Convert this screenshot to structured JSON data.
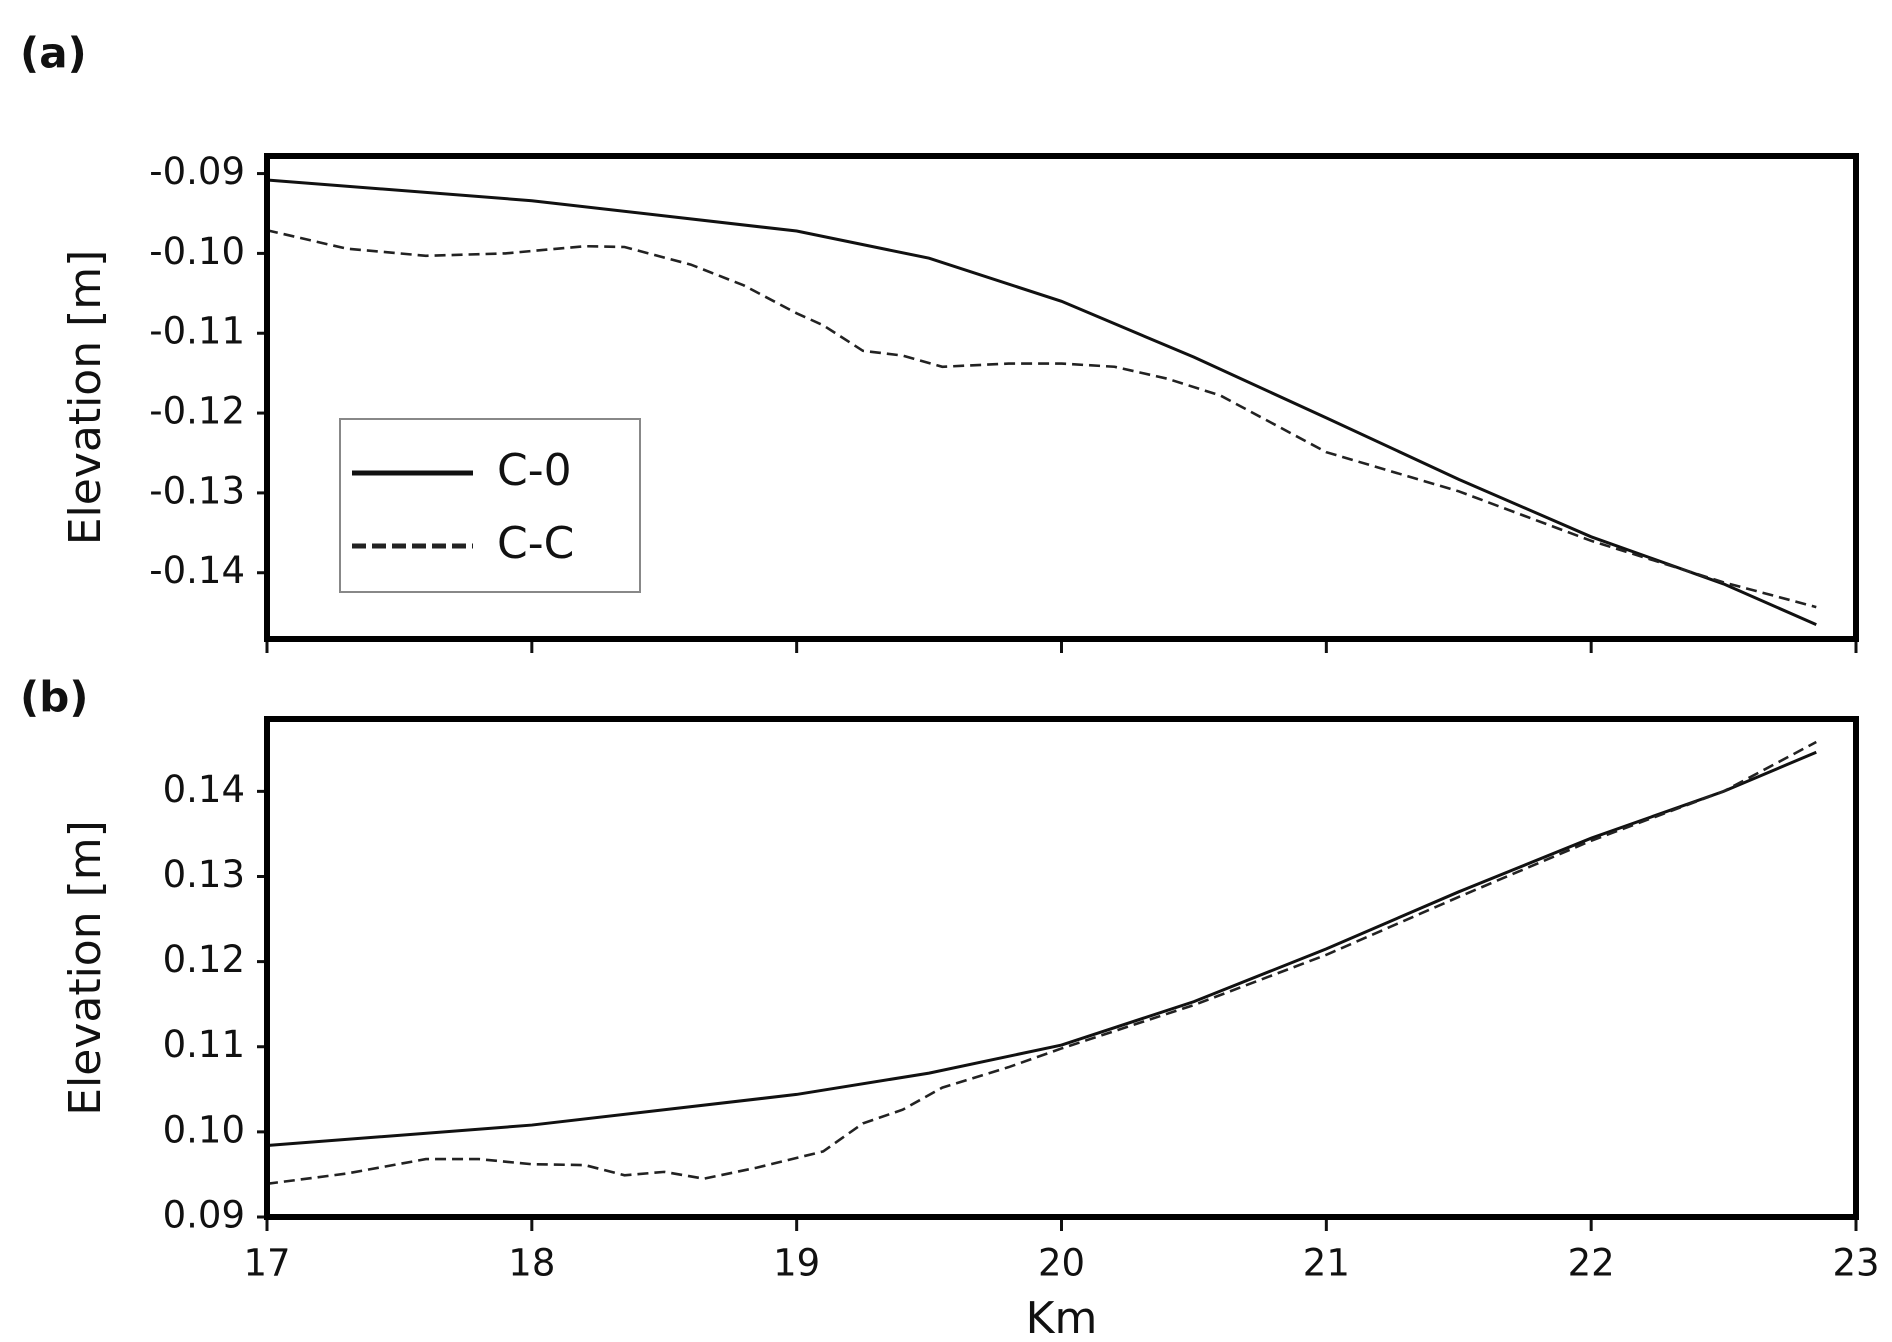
{
  "chart_data": [
    {
      "type": "line",
      "title": "(a)",
      "ylabel": "Elevation [m]",
      "xlim": [
        17,
        23
      ],
      "xticks": [
        17,
        18,
        19,
        20,
        21,
        22,
        23
      ],
      "xtick_labels": false,
      "ylim": [
        -0.1483,
        -0.0878
      ],
      "yticks": [
        -0.09,
        {
          "value": -0.1,
          "label": "-0.10"
        },
        -0.11,
        -0.12,
        -0.13,
        -0.14
      ],
      "legend": "lower left",
      "series": [
        {
          "name": "C-0",
          "color": "#111111",
          "dash": "solid",
          "x": [
            17,
            18,
            19,
            19.5,
            20,
            20.5,
            21,
            21.5,
            22,
            22.5,
            22.85
          ],
          "values": [
            -0.0908,
            -0.0934,
            -0.0972,
            -0.1006,
            -0.106,
            -0.113,
            -0.1206,
            -0.1283,
            -0.1355,
            -0.1414,
            -0.1465
          ]
        },
        {
          "name": "C-C",
          "color": "#222222",
          "dash": "dashed",
          "x": [
            17,
            17.3,
            17.6,
            17.9,
            18.2,
            18.35,
            18.6,
            18.8,
            19,
            19.1,
            19.25,
            19.4,
            19.55,
            19.8,
            20,
            20.2,
            20.4,
            20.6,
            21,
            21.5,
            22,
            22.5,
            22.85
          ],
          "values": [
            -0.0971,
            -0.0994,
            -0.1003,
            -0.1,
            -0.0991,
            -0.0992,
            -0.1014,
            -0.104,
            -0.1075,
            -0.109,
            -0.1122,
            -0.1128,
            -0.1142,
            -0.1138,
            -0.1138,
            -0.1142,
            -0.1157,
            -0.1178,
            -0.1249,
            -0.1298,
            -0.136,
            -0.1412,
            -0.1443
          ]
        }
      ]
    },
    {
      "type": "line",
      "title": "(b)",
      "ylabel": "Elevation [m]",
      "xlabel": "Km",
      "xlim": [
        17,
        23
      ],
      "xticks": [
        17,
        18,
        19,
        20,
        21,
        22,
        23
      ],
      "xtick_labels": true,
      "ylim": [
        0.09,
        0.1485
      ],
      "yticks": [
        0.09,
        {
          "value": 0.1,
          "label": "0.10"
        },
        0.11,
        0.12,
        0.13,
        0.14
      ],
      "series": [
        {
          "color": "#111111",
          "dash": "solid",
          "x": [
            17,
            18,
            19,
            19.5,
            20,
            20.5,
            21,
            21.5,
            22,
            22.5,
            22.85
          ],
          "values": [
            0.0984,
            0.1008,
            0.1044,
            0.1069,
            0.1102,
            0.1153,
            0.1215,
            0.1282,
            0.1345,
            0.14,
            0.1446
          ]
        },
        {
          "color": "#222222",
          "dash": "dashed",
          "x": [
            17,
            17.3,
            17.6,
            17.8,
            18,
            18.2,
            18.35,
            18.5,
            18.65,
            18.85,
            19.1,
            19.25,
            19.4,
            19.55,
            19.8,
            20,
            20.5,
            21,
            21.5,
            22,
            22.5,
            22.85
          ],
          "values": [
            0.0939,
            0.0951,
            0.0968,
            0.0968,
            0.0962,
            0.0961,
            0.0949,
            0.0953,
            0.0945,
            0.0958,
            0.0977,
            0.101,
            0.1026,
            0.1052,
            0.1076,
            0.1098,
            0.1149,
            0.1208,
            0.1276,
            0.1342,
            0.14,
            0.1458
          ]
        }
      ]
    }
  ]
}
